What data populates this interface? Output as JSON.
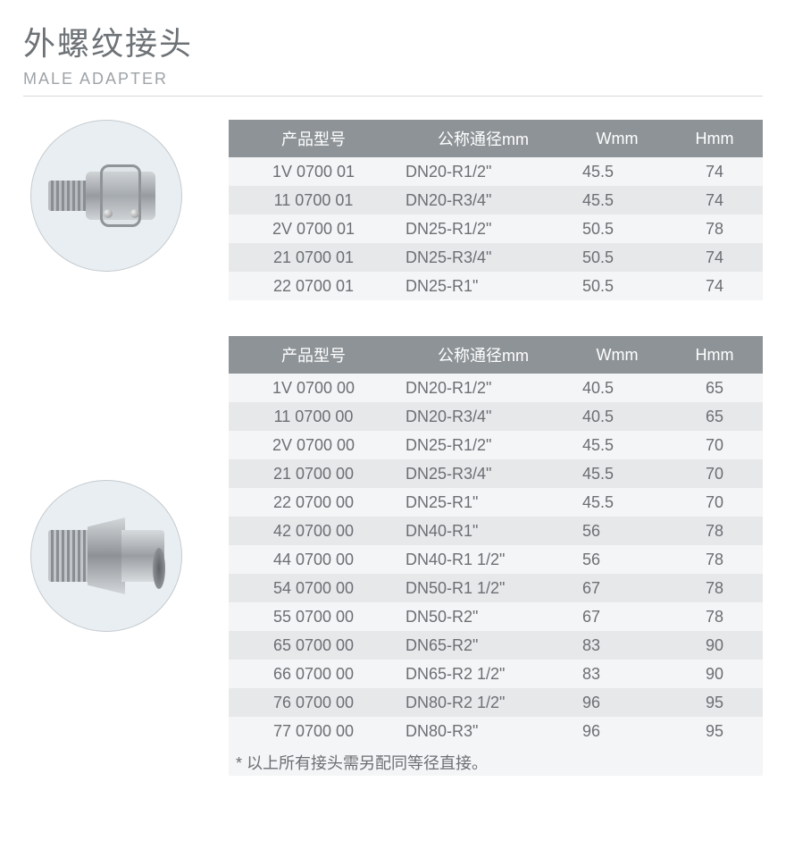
{
  "title_cn": "外螺纹接头",
  "title_en": "MALE ADAPTER",
  "colors": {
    "header_bg": "#8e9397",
    "header_text": "#ffffff",
    "row_even": "#e7e8ea",
    "row_odd": "#f4f5f6",
    "body_text": "#6b6f73",
    "circle_bg": "#e8eef2",
    "divider": "#d6d8da"
  },
  "columns": [
    "产品型号",
    "公称通径mm",
    "Wmm",
    "Hmm"
  ],
  "table1": {
    "rows": [
      [
        "1V 0700 01",
        "DN20-R1/2\"",
        "45.5",
        "74"
      ],
      [
        "11 0700 01",
        "DN20-R3/4\"",
        "45.5",
        "74"
      ],
      [
        "2V 0700 01",
        "DN25-R1/2\"",
        "50.5",
        "78"
      ],
      [
        "21 0700 01",
        "DN25-R3/4\"",
        "50.5",
        "74"
      ],
      [
        "22 0700 01",
        "DN25-R1\"",
        "50.5",
        "74"
      ]
    ]
  },
  "table2": {
    "rows": [
      [
        "1V 0700 00",
        "DN20-R1/2\"",
        "40.5",
        "65"
      ],
      [
        "11 0700 00",
        "DN20-R3/4\"",
        "40.5",
        "65"
      ],
      [
        "2V 0700 00",
        "DN25-R1/2\"",
        "45.5",
        "70"
      ],
      [
        "21 0700 00",
        "DN25-R3/4\"",
        "45.5",
        "70"
      ],
      [
        "22 0700 00",
        "DN25-R1\"",
        "45.5",
        "70"
      ],
      [
        "42 0700 00",
        "DN40-R1\"",
        "56",
        "78"
      ],
      [
        "44 0700 00",
        "DN40-R1 1/2\"",
        "56",
        "78"
      ],
      [
        "54 0700 00",
        "DN50-R1 1/2\"",
        "67",
        "78"
      ],
      [
        "55 0700 00",
        "DN50-R2\"",
        "67",
        "78"
      ],
      [
        "65 0700 00",
        "DN65-R2\"",
        "83",
        "90"
      ],
      [
        "66 0700 00",
        "DN65-R2 1/2\"",
        "83",
        "90"
      ],
      [
        "76 0700 00",
        "DN80-R2 1/2\"",
        "96",
        "95"
      ],
      [
        "77 0700 00",
        "DN80-R3\"",
        "96",
        "95"
      ]
    ]
  },
  "footnote": "* 以上所有接头需另配同等径直接。"
}
